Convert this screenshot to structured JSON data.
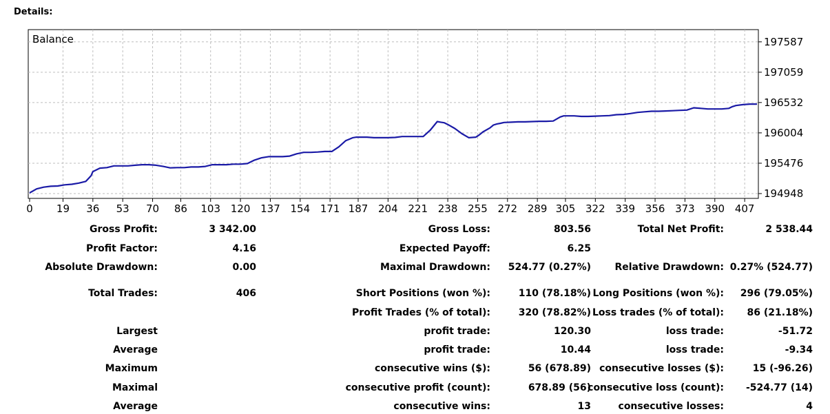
{
  "header": {
    "title": "Details:"
  },
  "chart_data": {
    "type": "line",
    "title": "Balance",
    "grid": true,
    "x_ticks": [
      "0",
      "19",
      "36",
      "53",
      "70",
      "86",
      "103",
      "120",
      "137",
      "154",
      "171",
      "187",
      "204",
      "221",
      "238",
      "255",
      "272",
      "289",
      "305",
      "322",
      "339",
      "356",
      "373",
      "390",
      "407"
    ],
    "y_ticks": [
      "197587",
      "197059",
      "196532",
      "196004",
      "195476",
      "194948"
    ],
    "xlim": [
      0,
      414
    ],
    "ylim": [
      194948,
      197800
    ],
    "series": [
      {
        "color": "#1a1aa6",
        "x": [
          0,
          4,
          8,
          12,
          16,
          20,
          24,
          28,
          32,
          35,
          36,
          40,
          44,
          48,
          52,
          56,
          60,
          64,
          68,
          72,
          76,
          80,
          84,
          88,
          92,
          96,
          100,
          104,
          108,
          112,
          116,
          120,
          124,
          128,
          132,
          136,
          140,
          144,
          148,
          152,
          156,
          160,
          164,
          168,
          172,
          176,
          180,
          184,
          186,
          188,
          190,
          192,
          196,
          200,
          204,
          208,
          212,
          216,
          220,
          224,
          228,
          232,
          234,
          236,
          238,
          242,
          246,
          250,
          254,
          256,
          258,
          262,
          264,
          266,
          268,
          270,
          274,
          278,
          282,
          286,
          290,
          294,
          298,
          302,
          304,
          306,
          310,
          314,
          318,
          322,
          326,
          330,
          334,
          338,
          342,
          346,
          350,
          354,
          358,
          362,
          366,
          370,
          374,
          376,
          378,
          382,
          386,
          390,
          394,
          398,
          400,
          402,
          406,
          410,
          414
        ],
        "y": [
          194960,
          195030,
          195060,
          195075,
          195080,
          195100,
          195110,
          195130,
          195160,
          195260,
          195330,
          195390,
          195400,
          195430,
          195430,
          195430,
          195440,
          195450,
          195450,
          195440,
          195420,
          195395,
          195400,
          195400,
          195410,
          195410,
          195420,
          195450,
          195450,
          195450,
          195460,
          195460,
          195470,
          195530,
          195570,
          195590,
          195590,
          195590,
          195600,
          195640,
          195665,
          195665,
          195670,
          195680,
          195680,
          195760,
          195870,
          195920,
          195930,
          195930,
          195930,
          195930,
          195920,
          195920,
          195920,
          195925,
          195940,
          195940,
          195940,
          195940,
          196050,
          196200,
          196190,
          196180,
          196150,
          196080,
          195990,
          195920,
          195930,
          195970,
          196020,
          196090,
          196140,
          196160,
          196170,
          196185,
          196190,
          196195,
          196195,
          196200,
          196205,
          196205,
          196210,
          196280,
          196300,
          196300,
          196300,
          196290,
          196290,
          196295,
          196300,
          196305,
          196320,
          196325,
          196340,
          196360,
          196370,
          196380,
          196380,
          196385,
          196390,
          196395,
          196400,
          196420,
          196440,
          196430,
          196420,
          196420,
          196420,
          196430,
          196460,
          196480,
          196495,
          196505,
          196505
        ]
      }
    ]
  },
  "stats": {
    "gross_profit": {
      "label": "Gross Profit:",
      "value": "3 342.00"
    },
    "gross_loss": {
      "label": "Gross Loss:",
      "value": "803.56"
    },
    "total_net_profit": {
      "label": "Total Net Profit:",
      "value": "2 538.44"
    },
    "profit_factor": {
      "label": "Profit Factor:",
      "value": "4.16"
    },
    "expected_payoff": {
      "label": "Expected Payoff:",
      "value": "6.25"
    },
    "absolute_drawdown": {
      "label": "Absolute Drawdown:",
      "value": "0.00"
    },
    "maximal_drawdown": {
      "label": "Maximal Drawdown:",
      "value": "524.77 (0.27%)"
    },
    "relative_drawdown": {
      "label": "Relative Drawdown:",
      "value": "0.27% (524.77)"
    },
    "total_trades": {
      "label": "Total Trades:",
      "value": "406"
    },
    "short_positions": {
      "label": "Short Positions (won %):",
      "value": "110 (78.18%)"
    },
    "long_positions": {
      "label": "Long Positions (won %):",
      "value": "296 (79.05%)"
    },
    "profit_trades": {
      "label": "Profit Trades (% of total):",
      "value": "320 (78.82%)"
    },
    "loss_trades": {
      "label": "Loss trades (% of total):",
      "value": "86 (21.18%)"
    },
    "largest": {
      "label": "Largest",
      "profit_label": "profit trade:",
      "profit_value": "120.30",
      "loss_label": "loss trade:",
      "loss_value": "-51.72"
    },
    "average": {
      "label": "Average",
      "profit_label": "profit trade:",
      "profit_value": "10.44",
      "loss_label": "loss trade:",
      "loss_value": "-9.34"
    },
    "maximum": {
      "label": "Maximum",
      "wins_label": "consecutive wins ($):",
      "wins_value": "56 (678.89)",
      "losses_label": "consecutive losses ($):",
      "losses_value": "15 (-96.26)"
    },
    "maximal": {
      "label": "Maximal",
      "profit_label": "consecutive profit (count):",
      "profit_value": "678.89 (56)",
      "loss_label": "consecutive loss (count):",
      "loss_value": "-524.77 (14)"
    },
    "average_consec": {
      "label": "Average",
      "wins_label": "consecutive wins:",
      "wins_value": "13",
      "losses_label": "consecutive losses:",
      "losses_value": "4"
    }
  }
}
